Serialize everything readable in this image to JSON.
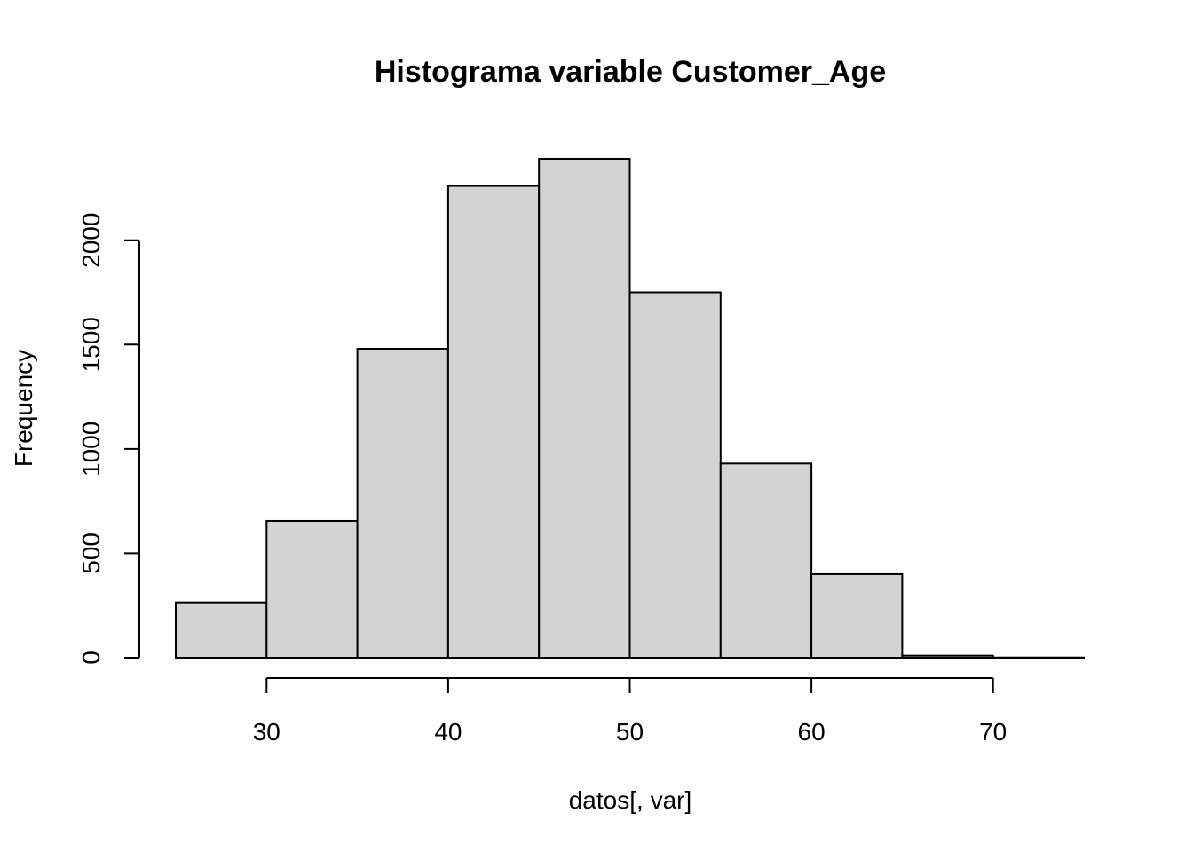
{
  "chart_data": {
    "type": "bar",
    "title": "Histograma variable Customer_Age",
    "xlabel": "datos[, var]",
    "ylabel": "Frequency",
    "bins": [
      {
        "from": 25,
        "to": 30,
        "count": 265
      },
      {
        "from": 30,
        "to": 35,
        "count": 655
      },
      {
        "from": 35,
        "to": 40,
        "count": 1480
      },
      {
        "from": 40,
        "to": 45,
        "count": 2260
      },
      {
        "from": 45,
        "to": 50,
        "count": 2390
      },
      {
        "from": 50,
        "to": 55,
        "count": 1750
      },
      {
        "from": 55,
        "to": 60,
        "count": 930
      },
      {
        "from": 60,
        "to": 65,
        "count": 400
      },
      {
        "from": 65,
        "to": 70,
        "count": 10
      },
      {
        "from": 70,
        "to": 75,
        "count": 1
      }
    ],
    "xticks": [
      30,
      40,
      50,
      60,
      70
    ],
    "yticks": [
      0,
      500,
      1000,
      1500,
      2000
    ],
    "xlim": [
      25,
      75
    ],
    "ylim": [
      0,
      2390
    ],
    "colors": {
      "bar_fill": "#d3d3d3",
      "bar_stroke": "#000000"
    }
  }
}
